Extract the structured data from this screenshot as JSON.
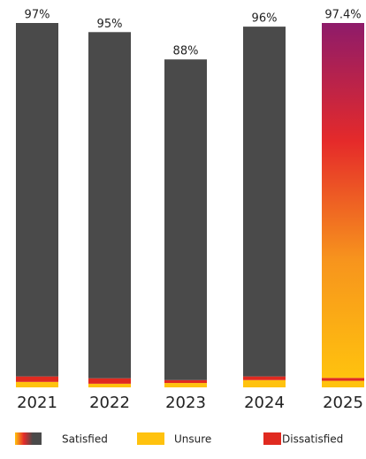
{
  "chart_data": {
    "type": "stacked-bar",
    "categories": [
      "2021",
      "2022",
      "2023",
      "2024",
      "2025"
    ],
    "series": [
      {
        "name": "Satisfied",
        "color": "#4a4a4a",
        "colors": [
          "#4a4a4a",
          "#4a4a4a",
          "#4a4a4a",
          "#4a4a4a",
          [
            "#8e1b6a",
            "#e52a2a",
            "#f7941d",
            "#ffc20e"
          ]
        ],
        "values": [
          97,
          95,
          88,
          96,
          97.4
        ],
        "value_labels": [
          "97%",
          "95%",
          "88%",
          "96%",
          "97.4%"
        ]
      },
      {
        "name": "Unsure",
        "color": "#ffc20e",
        "values": [
          1.5,
          1,
          1.2,
          2,
          1.8
        ]
      },
      {
        "name": "Dissatisfied",
        "color": "#e02a20",
        "values": [
          1.5,
          1.5,
          0.8,
          1,
          0.8
        ]
      }
    ]
  }
}
